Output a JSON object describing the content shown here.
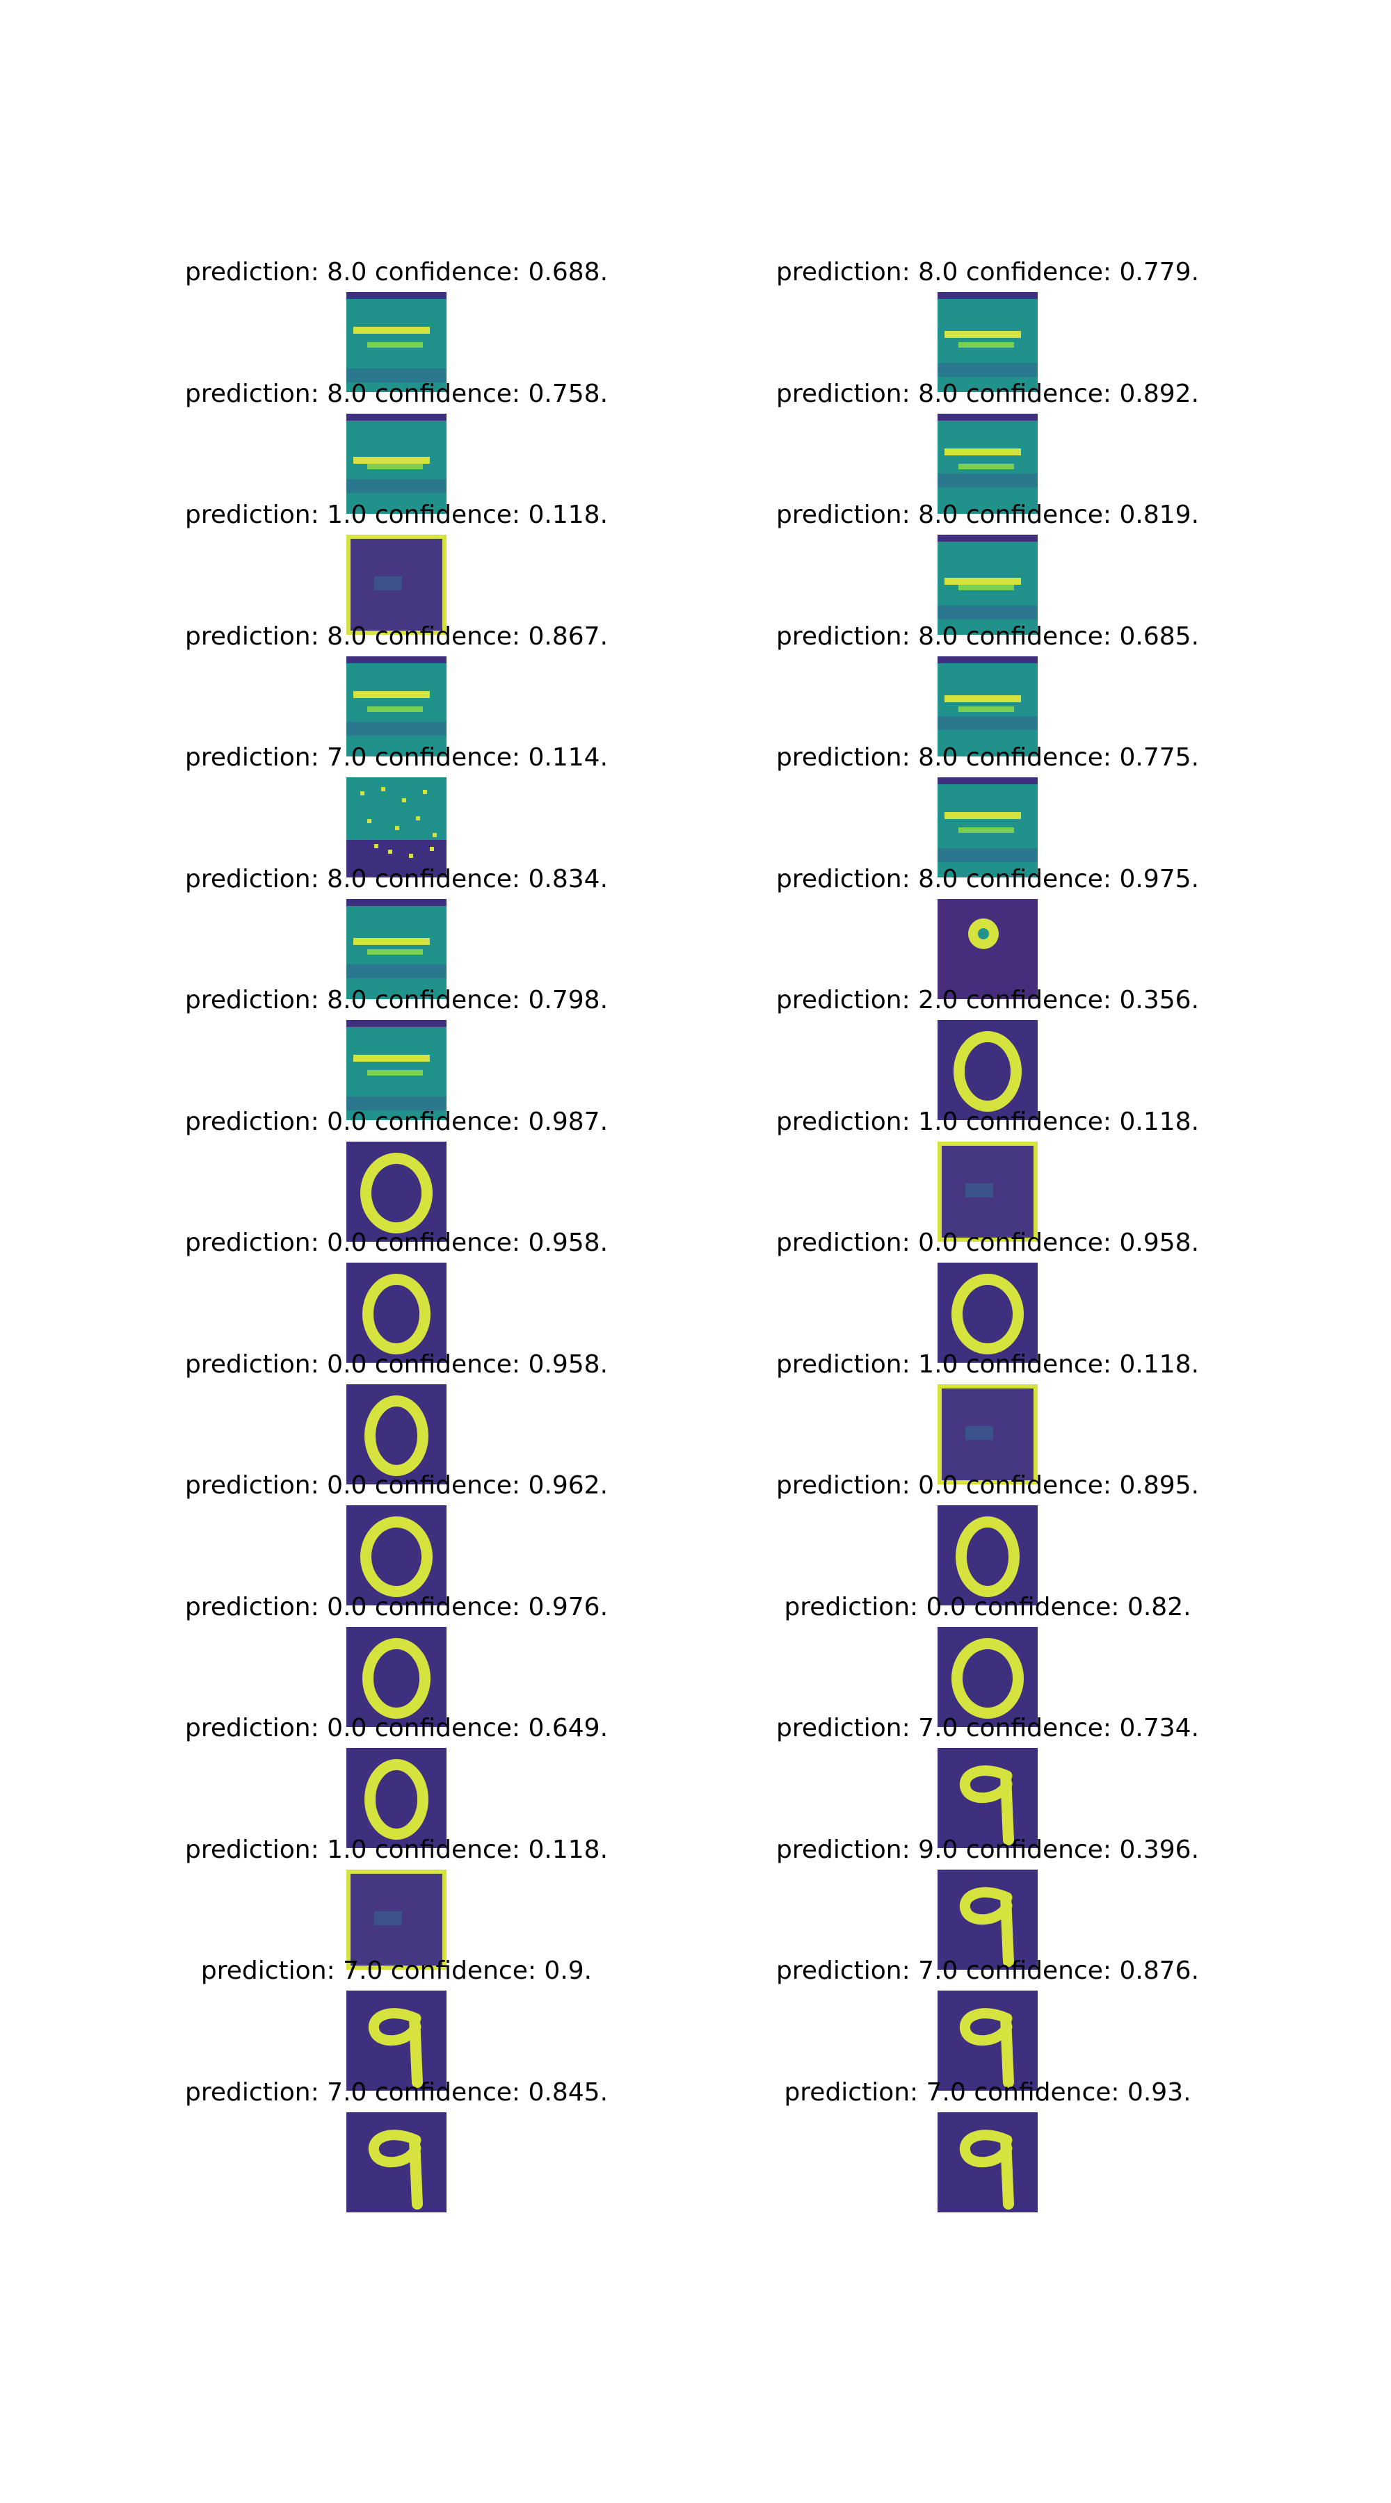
{
  "colors": {
    "background": "#ffffff",
    "text": "#000000",
    "colormap_low": "#3e2f7f",
    "colormap_mid": "#21918c",
    "colormap_high": "#d6e33f"
  },
  "panels": [
    {
      "title": "prediction: 8.0 confidence: 0.688.",
      "kind": "noise"
    },
    {
      "title": "prediction: 8.0 confidence: 0.779.",
      "kind": "noise"
    },
    {
      "title": "prediction: 8.0 confidence: 0.758.",
      "kind": "noise"
    },
    {
      "title": "prediction: 8.0 confidence: 0.892.",
      "kind": "noise"
    },
    {
      "title": "prediction: 1.0 confidence: 0.118.",
      "kind": "dark-frame"
    },
    {
      "title": "prediction: 8.0 confidence: 0.819.",
      "kind": "noise"
    },
    {
      "title": "prediction: 8.0 confidence: 0.867.",
      "kind": "noise"
    },
    {
      "title": "prediction: 8.0 confidence: 0.685.",
      "kind": "noise"
    },
    {
      "title": "prediction: 7.0 confidence: 0.114.",
      "kind": "dots"
    },
    {
      "title": "prediction: 8.0 confidence: 0.775.",
      "kind": "noise"
    },
    {
      "title": "prediction: 8.0 confidence: 0.834.",
      "kind": "noise"
    },
    {
      "title": "prediction: 8.0 confidence: 0.975.",
      "kind": "blob"
    },
    {
      "title": "prediction: 8.0 confidence: 0.798.",
      "kind": "noise"
    },
    {
      "title": "prediction: 2.0 confidence: 0.356.",
      "kind": "zero"
    },
    {
      "title": "prediction: 0.0 confidence: 0.987.",
      "kind": "zero"
    },
    {
      "title": "prediction: 1.0 confidence: 0.118.",
      "kind": "dark-frame"
    },
    {
      "title": "prediction: 0.0 confidence: 0.958.",
      "kind": "zero"
    },
    {
      "title": "prediction: 0.0 confidence: 0.958.",
      "kind": "zero"
    },
    {
      "title": "prediction: 0.0 confidence: 0.958.",
      "kind": "zero"
    },
    {
      "title": "prediction: 1.0 confidence: 0.118.",
      "kind": "dark-frame"
    },
    {
      "title": "prediction: 0.0 confidence: 0.962.",
      "kind": "zero"
    },
    {
      "title": "prediction: 0.0 confidence: 0.895.",
      "kind": "zero"
    },
    {
      "title": "prediction: 0.0 confidence: 0.976.",
      "kind": "zero"
    },
    {
      "title": "prediction: 0.0 confidence: 0.82.",
      "kind": "zero"
    },
    {
      "title": "prediction: 0.0 confidence: 0.649.",
      "kind": "zero"
    },
    {
      "title": "prediction: 7.0 confidence: 0.734.",
      "kind": "nine"
    },
    {
      "title": "prediction: 1.0 confidence: 0.118.",
      "kind": "dark-frame"
    },
    {
      "title": "prediction: 9.0 confidence: 0.396.",
      "kind": "nine"
    },
    {
      "title": "prediction: 7.0 confidence: 0.9.",
      "kind": "nine"
    },
    {
      "title": "prediction: 7.0 confidence: 0.876.",
      "kind": "nine"
    },
    {
      "title": "prediction: 7.0 confidence: 0.845.",
      "kind": "nine"
    },
    {
      "title": "prediction: 7.0 confidence: 0.93.",
      "kind": "nine"
    }
  ]
}
